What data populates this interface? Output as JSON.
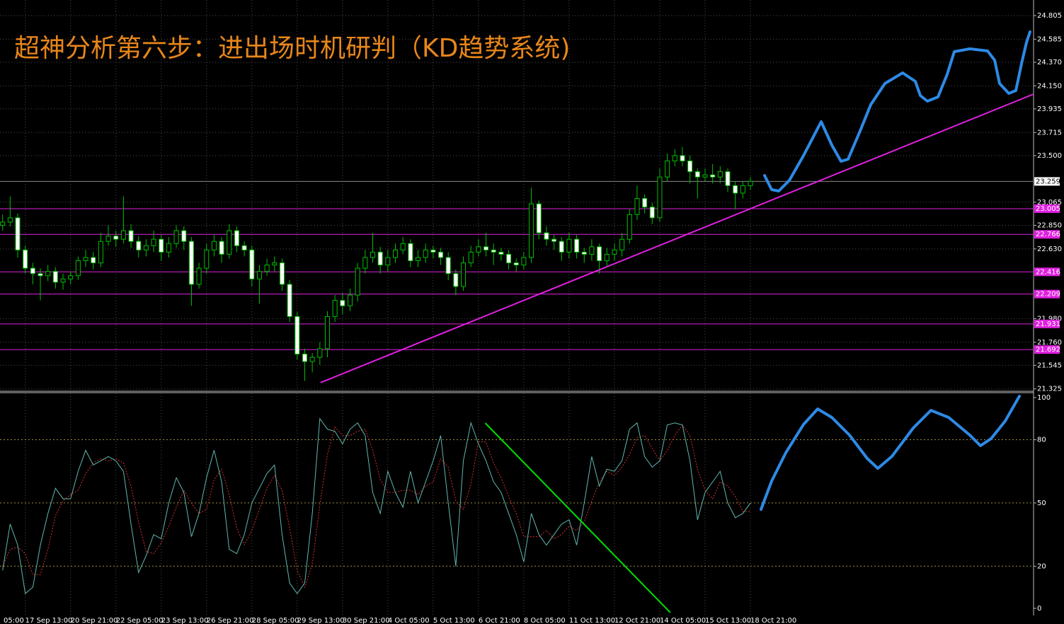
{
  "chart_data": {
    "type": "candlestick",
    "title": "超神分析第六步：进出场时机研判（KD趋势系统)",
    "categories": [
      "05:00",
      null,
      null,
      "17 Sep 13:00",
      null,
      null,
      null,
      null,
      null,
      "20 Sep 21:00",
      null,
      null,
      null,
      null,
      null,
      "22 Sep 05:00",
      null,
      null,
      null,
      null,
      null,
      "23 Sep 13:00",
      null,
      null,
      null,
      null,
      null,
      "26 Sep 21:00",
      null,
      null,
      null,
      null,
      null,
      "28 Sep 05:00",
      null,
      null,
      null,
      null,
      null,
      "29 Sep 13:00",
      null,
      null,
      null,
      null,
      null,
      "30 Sep 21:00",
      null,
      null,
      null,
      null,
      null,
      "4 Oct 05:00",
      null,
      null,
      null,
      null,
      null,
      "5 Oct 13:00",
      null,
      null,
      null,
      null,
      null,
      "6 Oct 21:00",
      null,
      null,
      null,
      null,
      null,
      "8 Oct 05:00",
      null,
      null,
      null,
      null,
      null,
      "11 Oct 13:00",
      null,
      null,
      null,
      null,
      null,
      "12 Oct 21:00",
      null,
      null,
      null,
      null,
      null,
      "14 Oct 05:00",
      null,
      null,
      null,
      null,
      null,
      "15 Oct 13:00",
      null,
      null,
      null,
      null,
      null,
      "18 Oct 21:00"
    ],
    "candles": {
      "open": [
        22.85,
        22.88,
        22.92,
        22.62,
        22.45,
        22.4,
        22.38,
        22.42,
        22.32,
        22.35,
        22.38,
        22.52,
        22.55,
        22.5,
        22.7,
        22.75,
        22.72,
        22.8,
        22.7,
        22.62,
        22.66,
        22.72,
        22.6,
        22.68,
        22.8,
        22.7,
        22.3,
        22.45,
        22.62,
        22.7,
        22.58,
        22.8,
        22.66,
        22.62,
        22.35,
        22.42,
        22.48,
        22.5,
        22.3,
        22.0,
        21.65,
        21.58,
        21.62,
        21.7,
        22.0,
        22.15,
        22.1,
        22.2,
        22.45,
        22.55,
        22.6,
        22.48,
        22.55,
        22.62,
        22.68,
        22.52,
        22.55,
        22.62,
        22.6,
        22.55,
        22.4,
        22.28,
        22.5,
        22.6,
        22.65,
        22.62,
        22.6,
        22.58,
        22.5,
        22.48,
        22.55,
        23.05,
        22.78,
        22.72,
        22.7,
        22.6,
        22.72,
        22.6,
        22.58,
        22.65,
        22.52,
        22.58,
        22.62,
        22.72,
        22.95,
        23.1,
        23.02,
        22.92,
        23.3,
        23.45,
        23.5,
        23.45,
        23.35,
        23.3,
        23.32,
        23.3,
        23.35,
        23.22,
        23.15,
        23.22
      ],
      "high": [
        22.95,
        23.12,
        22.96,
        22.66,
        22.5,
        22.45,
        22.48,
        22.46,
        22.4,
        22.42,
        22.56,
        22.62,
        22.6,
        22.78,
        22.85,
        22.8,
        23.12,
        22.86,
        22.75,
        22.72,
        22.8,
        22.76,
        22.74,
        22.85,
        22.84,
        22.74,
        22.5,
        22.68,
        22.76,
        22.74,
        22.86,
        22.84,
        22.7,
        22.66,
        22.48,
        22.54,
        22.56,
        22.54,
        22.34,
        22.04,
        21.7,
        21.66,
        21.76,
        22.05,
        22.2,
        22.22,
        22.26,
        22.5,
        22.62,
        22.78,
        22.65,
        22.62,
        22.68,
        22.74,
        22.72,
        22.62,
        22.68,
        22.66,
        22.64,
        22.6,
        22.44,
        22.56,
        22.66,
        22.72,
        22.78,
        22.68,
        22.64,
        22.62,
        22.54,
        22.6,
        23.2,
        23.08,
        22.84,
        22.76,
        22.74,
        22.78,
        22.76,
        22.64,
        22.72,
        22.68,
        22.64,
        22.68,
        22.78,
        23.0,
        23.22,
        23.14,
        23.06,
        23.38,
        23.52,
        23.56,
        23.58,
        23.5,
        23.38,
        23.38,
        23.42,
        23.4,
        23.38,
        23.26,
        23.26,
        23.3
      ],
      "low": [
        22.8,
        22.84,
        22.55,
        22.4,
        22.3,
        22.15,
        22.33,
        22.26,
        22.25,
        22.3,
        22.34,
        22.46,
        22.44,
        22.46,
        22.66,
        22.65,
        22.68,
        22.64,
        22.55,
        22.56,
        22.6,
        22.52,
        22.55,
        22.64,
        22.62,
        22.1,
        22.26,
        22.4,
        22.56,
        22.5,
        22.54,
        22.6,
        22.56,
        22.28,
        22.12,
        22.38,
        22.42,
        22.24,
        21.95,
        21.6,
        21.4,
        21.48,
        21.55,
        21.62,
        21.95,
        22.02,
        22.05,
        22.14,
        22.4,
        22.5,
        22.4,
        22.42,
        22.5,
        22.58,
        22.46,
        22.46,
        22.5,
        22.54,
        22.48,
        22.34,
        22.2,
        22.24,
        22.46,
        22.56,
        22.56,
        22.48,
        22.52,
        22.44,
        22.42,
        22.44,
        22.5,
        22.72,
        22.66,
        22.62,
        22.52,
        22.54,
        22.54,
        22.5,
        22.52,
        22.4,
        22.46,
        22.52,
        22.56,
        22.68,
        22.9,
        22.96,
        22.86,
        22.88,
        23.26,
        23.4,
        23.4,
        23.24,
        23.1,
        23.26,
        23.24,
        23.24,
        23.16,
        23.0,
        23.1,
        23.18
      ],
      "close": [
        22.88,
        22.92,
        22.62,
        22.45,
        22.4,
        22.38,
        22.42,
        22.32,
        22.35,
        22.38,
        22.52,
        22.55,
        22.5,
        22.7,
        22.75,
        22.72,
        22.8,
        22.7,
        22.62,
        22.66,
        22.72,
        22.6,
        22.68,
        22.8,
        22.7,
        22.3,
        22.45,
        22.62,
        22.7,
        22.58,
        22.8,
        22.66,
        22.62,
        22.35,
        22.42,
        22.48,
        22.5,
        22.3,
        22.0,
        21.65,
        21.58,
        21.62,
        21.7,
        22.0,
        22.15,
        22.1,
        22.2,
        22.45,
        22.55,
        22.6,
        22.48,
        22.55,
        22.62,
        22.68,
        22.52,
        22.55,
        22.62,
        22.6,
        22.55,
        22.4,
        22.28,
        22.5,
        22.6,
        22.65,
        22.62,
        22.6,
        22.58,
        22.5,
        22.48,
        22.55,
        23.05,
        22.78,
        22.72,
        22.7,
        22.6,
        22.72,
        22.6,
        22.58,
        22.65,
        22.52,
        22.58,
        22.62,
        22.72,
        22.95,
        23.1,
        23.02,
        22.92,
        23.3,
        23.45,
        23.5,
        23.45,
        23.35,
        23.3,
        23.32,
        23.3,
        23.35,
        23.22,
        23.15,
        23.22,
        23.26
      ]
    },
    "up_color": "#000000",
    "down_color": "#ffffff",
    "wick_color": "#00c000",
    "ylim": [
      21.31,
      24.95
    ],
    "yticks": [
      24.805,
      24.585,
      {
        "value": 24.37,
        "label": "24.370"
      },
      {
        "value": 24.15,
        "label": "24.150"
      },
      23.935,
      23.715,
      {
        "value": 23.5,
        "label": "23.500"
      },
      23.065,
      {
        "value": 22.85,
        "label": "22.850"
      },
      {
        "value": 22.63,
        "label": "22.630"
      },
      {
        "value": 21.98,
        "label": "21.980"
      },
      {
        "value": 21.76,
        "label": "21.760"
      },
      21.545,
      21.325
    ],
    "grid": true,
    "levels": [
      23.005,
      22.766,
      22.416,
      22.209,
      21.931,
      21.692
    ],
    "level_color": "#e020e0",
    "last_price": 23.259,
    "trendlines": [
      {
        "color": "#e020e0",
        "x": [
          42.1,
          136.5
        ],
        "y": [
          21.384,
          24.073
        ]
      }
    ],
    "indicator": {
      "type": "line",
      "ylim": [
        -3.4,
        102
      ],
      "yticks": [
        100,
        80,
        50,
        20,
        0
      ],
      "levels": [
        80,
        50,
        20
      ],
      "k": {
        "color": "#5fb8b0",
        "values": [
          18,
          40,
          30,
          7,
          10,
          30,
          45,
          57,
          52,
          52,
          65,
          75,
          68,
          70,
          72,
          70,
          65,
          40,
          17,
          25,
          35,
          33,
          50,
          62,
          55,
          34,
          45,
          62,
          75,
          60,
          28,
          26,
          35,
          50,
          57,
          64,
          68,
          35,
          12,
          7,
          12,
          45,
          90,
          85,
          84,
          78,
          85,
          88,
          82,
          55,
          45,
          65,
          55,
          48,
          65,
          50,
          60,
          70,
          82,
          50,
          20,
          70,
          88,
          78,
          70,
          60,
          55,
          45,
          35,
          22,
          45,
          35,
          30,
          35,
          40,
          42,
          30,
          50,
          72,
          58,
          66,
          65,
          70,
          85,
          88,
          72,
          67,
          70,
          87,
          88,
          87,
          70,
          42,
          55,
          60,
          65,
          50,
          43,
          45,
          50
        ]
      },
      "d": {
        "color": "#d03030",
        "values": [
          20,
          28,
          29,
          26,
          16,
          16,
          28,
          44,
          51,
          54,
          56,
          64,
          69,
          71,
          70,
          71,
          69,
          58,
          41,
          27,
          26,
          31,
          39,
          48,
          56,
          50,
          45,
          47,
          61,
          66,
          54,
          38,
          30,
          37,
          47,
          57,
          63,
          56,
          38,
          18,
          10,
          21,
          49,
          73,
          86,
          82,
          82,
          84,
          85,
          75,
          61,
          55,
          55,
          56,
          56,
          54,
          58,
          60,
          71,
          67,
          51,
          47,
          59,
          79,
          79,
          69,
          62,
          53,
          45,
          34,
          34,
          34,
          37,
          33,
          35,
          39,
          37,
          41,
          51,
          60,
          65,
          63,
          67,
          73,
          81,
          82,
          76,
          70,
          75,
          82,
          87,
          82,
          66,
          56,
          52,
          60,
          58,
          53,
          46,
          46
        ]
      },
      "trendlines": [
        {
          "color": "#00e000",
          "x": [
            63.9,
            88.4
          ],
          "y": [
            87.9,
            -2
          ]
        }
      ]
    }
  }
}
